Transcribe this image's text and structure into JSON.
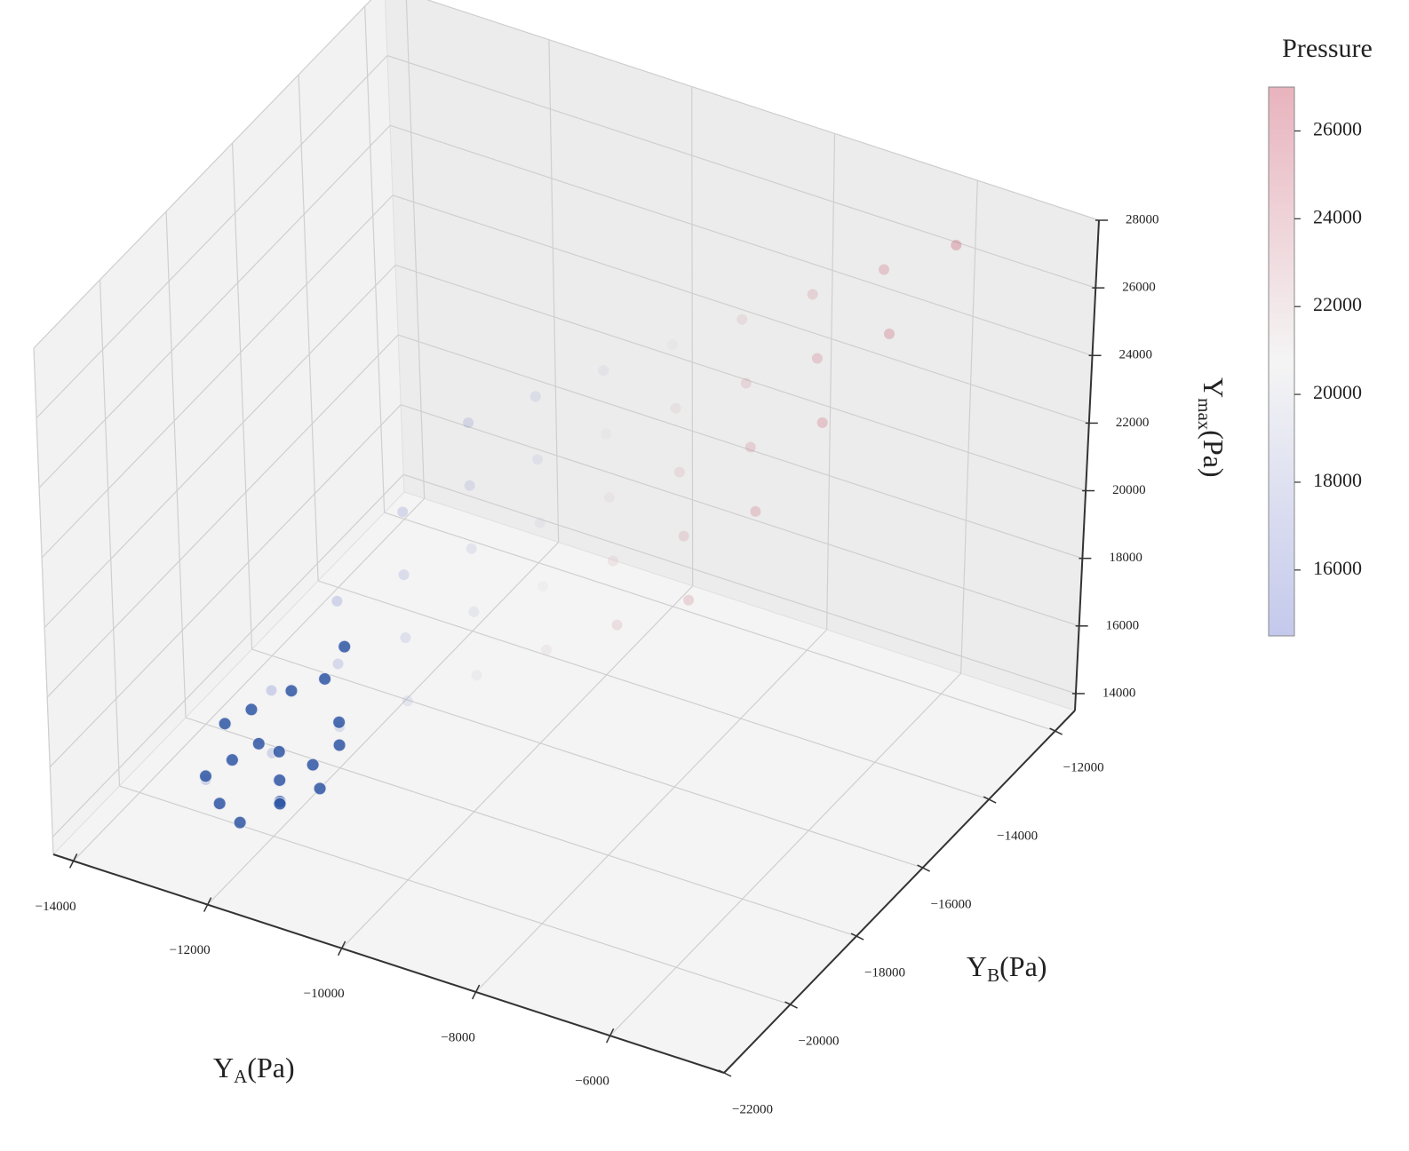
{
  "chart_data": {
    "type": "scatter3d",
    "xlabel": [
      "Y",
      "A",
      "(Pa)"
    ],
    "ylabel": [
      "Y",
      "B",
      "(Pa)"
    ],
    "zlabel": [
      "Y",
      "max",
      "(Pa)"
    ],
    "colorbar_label": "Pressure",
    "xlim": [
      -14300,
      -4300
    ],
    "ylim": [
      -22000,
      -11400
    ],
    "zlim": [
      13500,
      28000
    ],
    "xticks": [
      {
        "value": -14000,
        "label": "−14000"
      },
      {
        "value": -12000,
        "label": "−12000"
      },
      {
        "value": -10000,
        "label": "−10000"
      },
      {
        "value": -8000,
        "label": "−8000"
      },
      {
        "value": -6000,
        "label": "−6000"
      }
    ],
    "yticks": [
      {
        "value": -22000,
        "label": "−22000"
      },
      {
        "value": -20000,
        "label": "−20000"
      },
      {
        "value": -18000,
        "label": "−18000"
      },
      {
        "value": -16000,
        "label": "−16000"
      },
      {
        "value": -14000,
        "label": "−14000"
      },
      {
        "value": -12000,
        "label": "−12000"
      }
    ],
    "zticks": [
      14000,
      16000,
      18000,
      20000,
      22000,
      24000,
      26000,
      28000
    ],
    "clim": [
      14500,
      27000
    ],
    "cmap": [
      "#3b4cc0",
      "#dddddd",
      "#b40426"
    ],
    "colorbar_ticks": [
      16000,
      18000,
      20000,
      22000,
      24000,
      26000
    ],
    "colorbar_alpha": 0.3,
    "grid": true,
    "series": [
      {
        "alpha": 0.22,
        "x": [
          -13000,
          -12000,
          -11000,
          -10000,
          -9000,
          -8000,
          -7000,
          -6000,
          -13000,
          -12000,
          -11000,
          -10000,
          -9000,
          -8000,
          -7000,
          -6000,
          -13000,
          -12000,
          -11000,
          -10000,
          -9000,
          -8000,
          -7000,
          -6000,
          -13000,
          -12000,
          -11000,
          -10000,
          -9000,
          -8000,
          -7000,
          -6000,
          -13000,
          -12000,
          -11000,
          -10000,
          -9000,
          -8000,
          -7000,
          -6000
        ],
        "y": [
          -20000,
          -20000,
          -20000,
          -20000,
          -20000,
          -20000,
          -20000,
          -20000,
          -18000,
          -18000,
          -18000,
          -18000,
          -18000,
          -18000,
          -18000,
          -18000,
          -16000,
          -16000,
          -16000,
          -16000,
          -16000,
          -16000,
          -16000,
          -16000,
          -14000,
          -14000,
          -14000,
          -14000,
          -14000,
          -14000,
          -14000,
          -14000,
          -12000,
          -12000,
          -12000,
          -12000,
          -12000,
          -12000,
          -12000,
          -12000
        ],
        "z": [
          14500,
          15900,
          17300,
          18700,
          20100,
          21500,
          22900,
          24300,
          15100,
          16500,
          17900,
          19300,
          20700,
          22100,
          23500,
          24900,
          15700,
          17100,
          18500,
          19900,
          21300,
          22700,
          24100,
          25500,
          16300,
          17700,
          19100,
          20500,
          21900,
          23300,
          24700,
          26100,
          16900,
          18300,
          19700,
          21100,
          22500,
          23900,
          25300,
          26700
        ]
      },
      {
        "alpha": 0.85,
        "color": "#2e56a3",
        "x": [
          -13000,
          -12800,
          -12600,
          -12400,
          -12200,
          -12000,
          -11800,
          -11600,
          -12900,
          -12500,
          -12100,
          -11700,
          -13200,
          -12700,
          -12300,
          -11900,
          -11500,
          -12000
        ],
        "y": [
          -20000,
          -19600,
          -19200,
          -19000,
          -19400,
          -19800,
          -19200,
          -18800,
          -18800,
          -18400,
          -18200,
          -18600,
          -19000,
          -20200,
          -20400,
          -20000,
          -19600,
          -17800
        ],
        "z": [
          14600,
          14800,
          15000,
          14700,
          14400,
          14300,
          14900,
          15200,
          15400,
          15800,
          16200,
          15600,
          15000,
          14200,
          14100,
          14500,
          14800,
          16800
        ]
      }
    ]
  }
}
